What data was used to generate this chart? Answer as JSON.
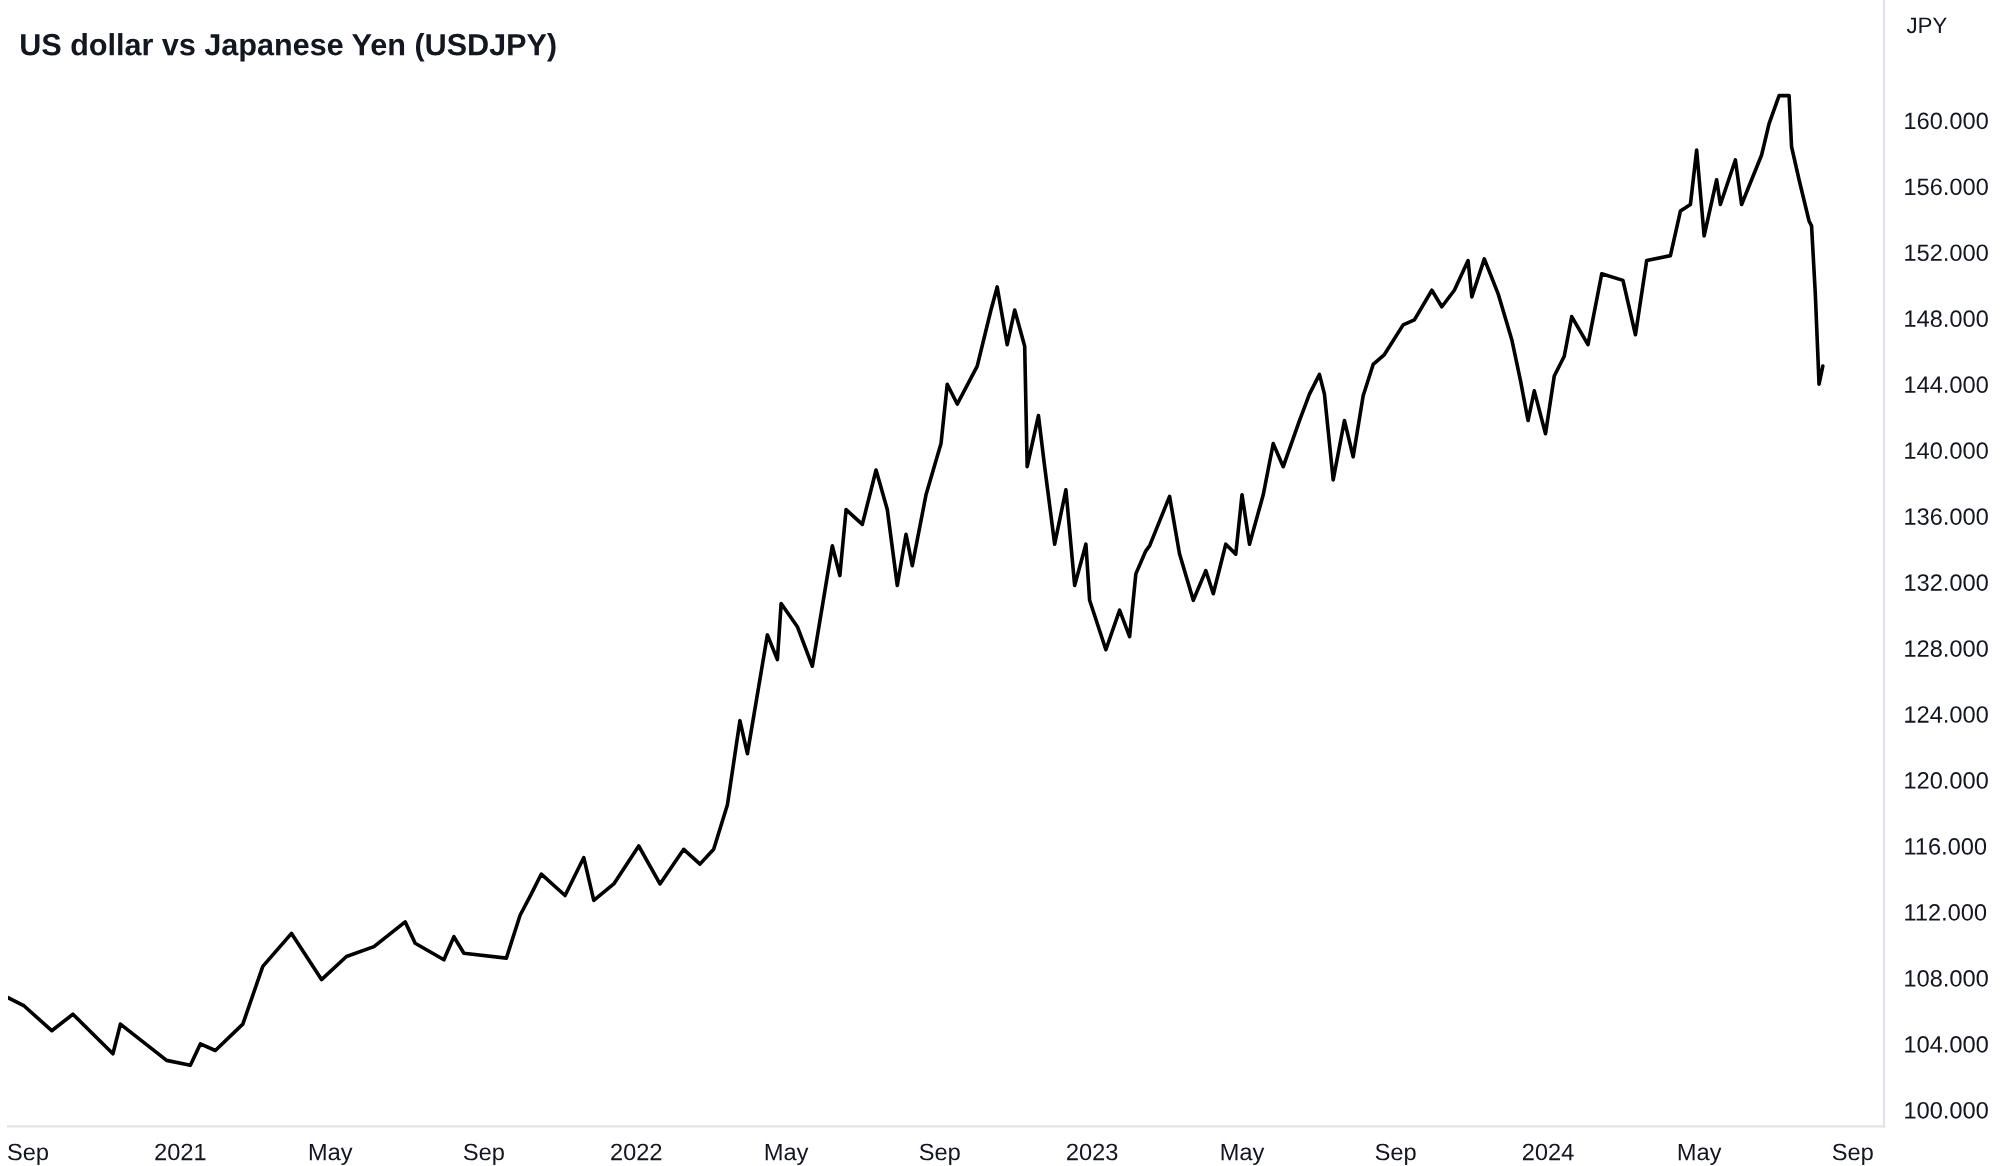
{
  "chart_data": {
    "type": "line",
    "title": "US dollar vs Japanese Yen (USDJPY)",
    "ylabel": "JPY",
    "x": [
      "2020-08-16",
      "2020-08-29",
      "2020-09-20",
      "2020-10-07",
      "2020-11-08",
      "2020-11-14",
      "2020-12-21",
      "2021-01-09",
      "2021-01-17",
      "2021-01-29",
      "2021-02-20",
      "2021-03-08",
      "2021-03-31",
      "2021-04-24",
      "2021-05-14",
      "2021-06-05",
      "2021-06-30",
      "2021-07-08",
      "2021-07-31",
      "2021-08-08",
      "2021-08-16",
      "2021-09-19",
      "2021-09-30",
      "2021-10-09",
      "2021-10-17",
      "2021-11-05",
      "2021-11-20",
      "2021-11-28",
      "2021-12-14",
      "2022-01-03",
      "2022-01-20",
      "2022-02-08",
      "2022-02-21",
      "2022-03-04",
      "2022-03-15",
      "2022-03-25",
      "2022-03-31",
      "2022-04-16",
      "2022-04-24",
      "2022-04-27",
      "2022-05-10",
      "2022-05-22",
      "2022-06-07",
      "2022-06-13",
      "2022-06-18",
      "2022-07-01",
      "2022-07-12",
      "2022-07-21",
      "2022-07-29",
      "2022-08-05",
      "2022-08-10",
      "2022-08-21",
      "2022-09-02",
      "2022-09-07",
      "2022-09-15",
      "2022-10-01",
      "2022-10-12",
      "2022-10-17",
      "2022-10-25",
      "2022-10-31",
      "2022-11-08",
      "2022-11-10",
      "2022-11-19",
      "2022-11-24",
      "2022-12-02",
      "2022-12-11",
      "2022-12-18",
      "2022-12-27",
      "2022-12-30",
      "2023-01-12",
      "2023-01-23",
      "2023-01-31",
      "2023-02-05",
      "2023-02-13",
      "2023-02-16",
      "2023-03-04",
      "2023-03-12",
      "2023-03-23",
      "2023-04-02",
      "2023-04-08",
      "2023-04-18",
      "2023-04-26",
      "2023-05-01",
      "2023-05-07",
      "2023-05-18",
      "2023-05-26",
      "2023-06-03",
      "2023-06-16",
      "2023-06-24",
      "2023-07-02",
      "2023-07-06",
      "2023-07-13",
      "2023-07-22",
      "2023-07-29",
      "2023-08-06",
      "2023-08-14",
      "2023-08-23",
      "2023-09-07",
      "2023-09-16",
      "2023-09-30",
      "2023-10-08",
      "2023-10-18",
      "2023-10-29",
      "2023-11-01",
      "2023-11-11",
      "2023-11-22",
      "2023-12-03",
      "2023-12-10",
      "2023-12-16",
      "2023-12-21",
      "2023-12-30",
      "2024-01-06",
      "2024-01-14",
      "2024-01-20",
      "2024-02-02",
      "2024-02-13",
      "2024-03-01",
      "2024-03-11",
      "2024-03-20",
      "2024-04-08",
      "2024-04-16",
      "2024-04-24",
      "2024-04-29",
      "2024-05-05",
      "2024-05-15",
      "2024-05-18",
      "2024-05-30",
      "2024-06-04",
      "2024-06-20",
      "2024-06-26",
      "2024-07-04",
      "2024-07-12",
      "2024-07-14",
      "2024-07-20",
      "2024-07-28",
      "2024-07-30",
      "2024-08-02",
      "2024-08-05",
      "2024-08-08"
    ],
    "series": [
      {
        "color": "#000000",
        "values": [
          106.8,
          106.3,
          104.8,
          105.8,
          103.4,
          105.2,
          103.0,
          102.7,
          104.0,
          103.6,
          105.2,
          108.7,
          110.7,
          107.9,
          109.3,
          109.9,
          111.4,
          110.1,
          109.1,
          110.5,
          109.5,
          109.2,
          111.8,
          113.1,
          114.3,
          113.0,
          115.3,
          112.7,
          113.7,
          116.0,
          113.7,
          115.8,
          114.9,
          115.8,
          118.5,
          123.6,
          121.6,
          128.8,
          127.3,
          130.7,
          129.3,
          126.9,
          134.2,
          132.4,
          136.4,
          135.5,
          138.8,
          136.4,
          131.8,
          134.9,
          133.0,
          137.3,
          140.4,
          144.0,
          142.8,
          145.1,
          148.5,
          149.9,
          146.4,
          148.5,
          146.3,
          139.0,
          142.1,
          139.0,
          134.3,
          137.6,
          131.8,
          134.3,
          130.9,
          127.9,
          130.3,
          128.7,
          132.5,
          133.9,
          134.2,
          137.2,
          133.7,
          130.9,
          132.7,
          131.3,
          134.3,
          133.7,
          137.3,
          134.3,
          137.3,
          140.4,
          139.0,
          141.8,
          143.4,
          144.6,
          143.4,
          138.2,
          141.8,
          139.6,
          143.3,
          145.2,
          145.8,
          147.6,
          147.9,
          149.7,
          148.7,
          149.7,
          151.5,
          149.3,
          151.6,
          149.5,
          146.7,
          144.2,
          141.8,
          143.6,
          141.0,
          144.5,
          145.7,
          148.1,
          146.4,
          150.7,
          150.3,
          147.0,
          151.5,
          151.8,
          154.5,
          154.9,
          158.2,
          153.0,
          156.4,
          154.9,
          157.6,
          154.9,
          157.9,
          159.8,
          161.5,
          161.5,
          158.4,
          156.4,
          153.9,
          153.6,
          149.5,
          144.0,
          145.1
        ]
      }
    ],
    "xlim": [
      "2020-08-16",
      "2024-09-26"
    ],
    "xticks": [
      {
        "value": "2020-09-01",
        "label": "Sep"
      },
      {
        "value": "2021-01-01",
        "label": "2021"
      },
      {
        "value": "2021-05-01",
        "label": "May"
      },
      {
        "value": "2021-09-01",
        "label": "Sep"
      },
      {
        "value": "2022-01-01",
        "label": "2022"
      },
      {
        "value": "2022-05-01",
        "label": "May"
      },
      {
        "value": "2022-09-01",
        "label": "Sep"
      },
      {
        "value": "2023-01-01",
        "label": "2023"
      },
      {
        "value": "2023-05-01",
        "label": "May"
      },
      {
        "value": "2023-09-01",
        "label": "Sep"
      },
      {
        "value": "2024-01-01",
        "label": "2024"
      },
      {
        "value": "2024-05-01",
        "label": "May"
      },
      {
        "value": "2024-09-01",
        "label": "Sep"
      }
    ],
    "ylim": [
      99,
      167.3
    ],
    "yticks": [
      {
        "value": 100,
        "label": "100.000"
      },
      {
        "value": 104,
        "label": "104.000"
      },
      {
        "value": 108,
        "label": "108.000"
      },
      {
        "value": 112,
        "label": "112.000"
      },
      {
        "value": 116,
        "label": "116.000"
      },
      {
        "value": 120,
        "label": "120.000"
      },
      {
        "value": 124,
        "label": "124.000"
      },
      {
        "value": 128,
        "label": "128.000"
      },
      {
        "value": 132,
        "label": "132.000"
      },
      {
        "value": 136,
        "label": "136.000"
      },
      {
        "value": 140,
        "label": "140.000"
      },
      {
        "value": 144,
        "label": "144.000"
      },
      {
        "value": 148,
        "label": "148.000"
      },
      {
        "value": 152,
        "label": "152.000"
      },
      {
        "value": 156,
        "label": "156.000"
      },
      {
        "value": 160,
        "label": "160.000"
      }
    ],
    "grid": false,
    "marker": "none",
    "line_style": "solid"
  }
}
